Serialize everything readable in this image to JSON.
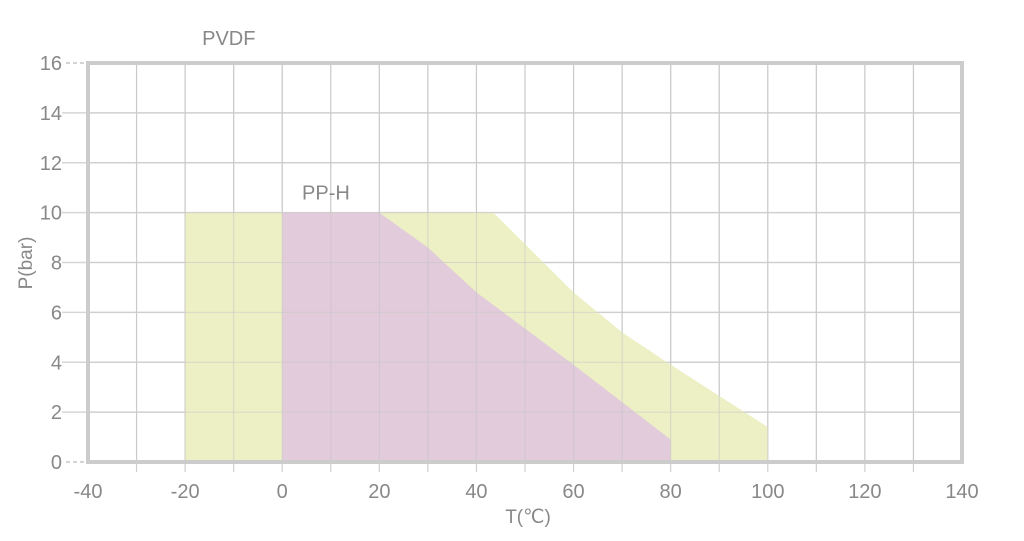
{
  "chart_data": {
    "type": "area",
    "title": "",
    "xlabel": "T(℃)",
    "ylabel": "P(bar)",
    "xlim": [
      -40,
      140
    ],
    "ylim": [
      0,
      16
    ],
    "x_ticks": [
      -40,
      -20,
      0,
      20,
      40,
      60,
      80,
      100,
      120,
      140
    ],
    "y_ticks": [
      0,
      2,
      4,
      6,
      8,
      10,
      12,
      14,
      16
    ],
    "grid": true,
    "series": [
      {
        "name": "PVDF",
        "color": "#ecf0c4",
        "points": [
          [
            -20,
            0
          ],
          [
            -20,
            10
          ],
          [
            43.5,
            10
          ],
          [
            60,
            6.8
          ],
          [
            70,
            5.2
          ],
          [
            80,
            3.9
          ],
          [
            100,
            1.4
          ],
          [
            100,
            0
          ]
        ]
      },
      {
        "name": "PP-H",
        "color": "#e2cbda",
        "points": [
          [
            0,
            0
          ],
          [
            0,
            10
          ],
          [
            20,
            10
          ],
          [
            30,
            8.6
          ],
          [
            40,
            6.8
          ],
          [
            60,
            3.9
          ],
          [
            70,
            2.4
          ],
          [
            80,
            0.9
          ],
          [
            80,
            0
          ]
        ]
      }
    ],
    "annotations": [
      {
        "text": "PVDF",
        "x": -11,
        "y": 17
      },
      {
        "text": "PP-H",
        "x": 9,
        "y": 10.8
      }
    ]
  }
}
